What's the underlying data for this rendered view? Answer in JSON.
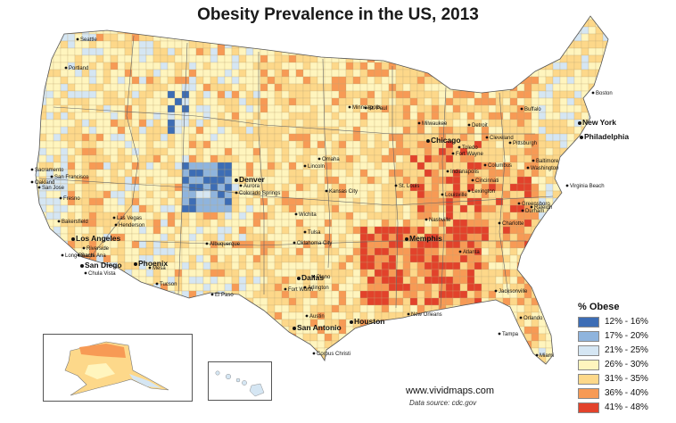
{
  "title": "Obesity Prevalence in the US, 2013",
  "legend": {
    "title": "% Obese",
    "items": [
      {
        "label": "12% - 16%",
        "color": "#3d6db5"
      },
      {
        "label": "17% - 20%",
        "color": "#8fb4dd"
      },
      {
        "label": "21% - 25%",
        "color": "#d5e6f3"
      },
      {
        "label": "26% - 30%",
        "color": "#fff5be"
      },
      {
        "label": "31% - 35%",
        "color": "#fdd88a"
      },
      {
        "label": "36% - 40%",
        "color": "#f79a55"
      },
      {
        "label": "41% - 48%",
        "color": "#e2422b"
      }
    ]
  },
  "cities": [
    {
      "name": "Seattle",
      "big": false
    },
    {
      "name": "Portland",
      "big": false
    },
    {
      "name": "Sacramento",
      "big": false
    },
    {
      "name": "San Francisco",
      "big": false
    },
    {
      "name": "Oakland",
      "big": false
    },
    {
      "name": "San Jose",
      "big": false
    },
    {
      "name": "Fresno",
      "big": false
    },
    {
      "name": "Bakersfield",
      "big": false
    },
    {
      "name": "Los Angeles",
      "big": true
    },
    {
      "name": "Riverside",
      "big": false
    },
    {
      "name": "Long Beach",
      "big": false
    },
    {
      "name": "Santa Ana",
      "big": false
    },
    {
      "name": "San Diego",
      "big": true
    },
    {
      "name": "Chula Vista",
      "big": false
    },
    {
      "name": "Las Vegas",
      "big": false
    },
    {
      "name": "Henderson",
      "big": false
    },
    {
      "name": "Phoenix",
      "big": true
    },
    {
      "name": "Mesa",
      "big": false
    },
    {
      "name": "Tucson",
      "big": false
    },
    {
      "name": "Albuquerque",
      "big": false
    },
    {
      "name": "El Paso",
      "big": false
    },
    {
      "name": "Denver",
      "big": true
    },
    {
      "name": "Aurora",
      "big": false
    },
    {
      "name": "Colorado Springs",
      "big": false
    },
    {
      "name": "Minneapolis",
      "big": false
    },
    {
      "name": "St. Paul",
      "big": false
    },
    {
      "name": "Milwaukee",
      "big": false
    },
    {
      "name": "Chicago",
      "big": true
    },
    {
      "name": "Detroit",
      "big": false
    },
    {
      "name": "Toledo",
      "big": false
    },
    {
      "name": "Cleveland",
      "big": false
    },
    {
      "name": "Fort Wayne",
      "big": false
    },
    {
      "name": "Columbus",
      "big": false
    },
    {
      "name": "Indianapolis",
      "big": false
    },
    {
      "name": "Cincinnati",
      "big": false
    },
    {
      "name": "Pittsburgh",
      "big": false
    },
    {
      "name": "Buffalo",
      "big": false
    },
    {
      "name": "Boston",
      "big": false
    },
    {
      "name": "New York",
      "big": true
    },
    {
      "name": "Philadelphia",
      "big": true
    },
    {
      "name": "Baltimore",
      "big": false
    },
    {
      "name": "Washington",
      "big": false
    },
    {
      "name": "Virginia Beach",
      "big": false
    },
    {
      "name": "Lincoln",
      "big": false
    },
    {
      "name": "Omaha",
      "big": false
    },
    {
      "name": "Kansas City",
      "big": false
    },
    {
      "name": "St. Louis",
      "big": false
    },
    {
      "name": "Wichita",
      "big": false
    },
    {
      "name": "Tulsa",
      "big": false
    },
    {
      "name": "Oklahoma City",
      "big": false
    },
    {
      "name": "Louisville",
      "big": false
    },
    {
      "name": "Lexington",
      "big": false
    },
    {
      "name": "Nashville",
      "big": false
    },
    {
      "name": "Memphis",
      "big": true
    },
    {
      "name": "Greensboro",
      "big": false
    },
    {
      "name": "Raleigh",
      "big": false
    },
    {
      "name": "Durham",
      "big": false
    },
    {
      "name": "Charlotte",
      "big": false
    },
    {
      "name": "Atlanta",
      "big": false
    },
    {
      "name": "Dallas",
      "big": true
    },
    {
      "name": "Plano",
      "big": false
    },
    {
      "name": "Fort Worth",
      "big": false
    },
    {
      "name": "Arlington",
      "big": false
    },
    {
      "name": "Austin",
      "big": false
    },
    {
      "name": "San Antonio",
      "big": true
    },
    {
      "name": "Houston",
      "big": true
    },
    {
      "name": "Corpus Christi",
      "big": false
    },
    {
      "name": "New Orleans",
      "big": false
    },
    {
      "name": "Jacksonville",
      "big": false
    },
    {
      "name": "Orlando",
      "big": false
    },
    {
      "name": "Tampa",
      "big": false
    },
    {
      "name": "Miami",
      "big": false
    }
  ],
  "footer": {
    "url": "www.vividmaps.com",
    "source": "Data source: cdc.gov"
  }
}
